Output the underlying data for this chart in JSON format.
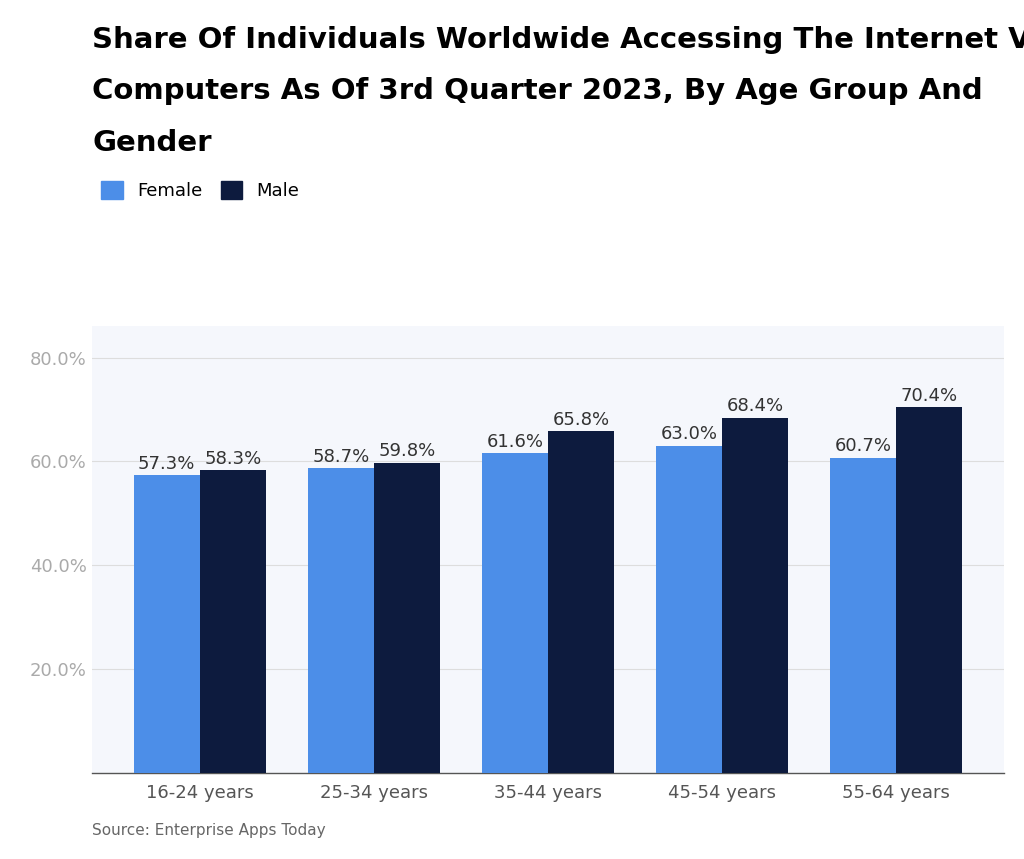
{
  "title_line1": "Share Of Individuals Worldwide Accessing The Internet Via",
  "title_line2": "Computers As Of 3rd Quarter 2023, By Age Group And",
  "title_line3": "Gender",
  "categories": [
    "16-24 years",
    "25-34 years",
    "35-44 years",
    "45-54 years",
    "55-64 years"
  ],
  "female_values": [
    57.3,
    58.7,
    61.6,
    63.0,
    60.7
  ],
  "male_values": [
    58.3,
    59.8,
    65.8,
    68.4,
    70.4
  ],
  "female_color": "#4C8EE8",
  "male_color": "#0D1B3E",
  "legend_labels": [
    "Female",
    "Male"
  ],
  "yticks": [
    20.0,
    40.0,
    60.0,
    80.0
  ],
  "ylim": [
    0,
    86
  ],
  "source_text": "Source: Enterprise Apps Today",
  "background_color": "#ffffff",
  "plot_bg_color": "#f5f7fc",
  "title_fontsize": 21,
  "tick_fontsize": 13,
  "bar_width": 0.38,
  "value_label_fontsize": 13
}
